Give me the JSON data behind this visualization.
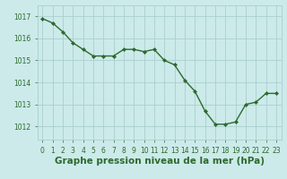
{
  "x": [
    0,
    1,
    2,
    3,
    4,
    5,
    6,
    7,
    8,
    9,
    10,
    11,
    12,
    13,
    14,
    15,
    16,
    17,
    18,
    19,
    20,
    21,
    22,
    23
  ],
  "y": [
    1016.9,
    1016.7,
    1016.3,
    1015.8,
    1015.5,
    1015.2,
    1015.2,
    1015.2,
    1015.5,
    1015.5,
    1015.4,
    1015.5,
    1015.0,
    1014.8,
    1014.1,
    1013.6,
    1012.7,
    1012.1,
    1012.1,
    1012.2,
    1013.0,
    1013.1,
    1013.5,
    1013.5
  ],
  "line_color": "#2d6a2d",
  "marker": "D",
  "marker_size": 2.0,
  "bg_color": "#cceaea",
  "grid_color": "#aacece",
  "xlabel": "Graphe pression niveau de la mer (hPa)",
  "xlabel_fontsize": 7.5,
  "ytick_labels": [
    "1012",
    "1013",
    "1014",
    "1015",
    "1016",
    "1017"
  ],
  "ytick_values": [
    1012,
    1013,
    1014,
    1015,
    1016,
    1017
  ],
  "ylim": [
    1011.4,
    1017.5
  ],
  "xlim": [
    -0.5,
    23.5
  ],
  "xtick_labels": [
    "0",
    "1",
    "2",
    "3",
    "4",
    "5",
    "6",
    "7",
    "8",
    "9",
    "10",
    "11",
    "12",
    "13",
    "14",
    "15",
    "16",
    "17",
    "18",
    "19",
    "20",
    "21",
    "22",
    "23"
  ],
  "xtick_values": [
    0,
    1,
    2,
    3,
    4,
    5,
    6,
    7,
    8,
    9,
    10,
    11,
    12,
    13,
    14,
    15,
    16,
    17,
    18,
    19,
    20,
    21,
    22,
    23
  ],
  "tick_color": "#2d6a2d",
  "tick_fontsize": 5.5,
  "linewidth": 1.0,
  "label_color": "#2d6a2d"
}
